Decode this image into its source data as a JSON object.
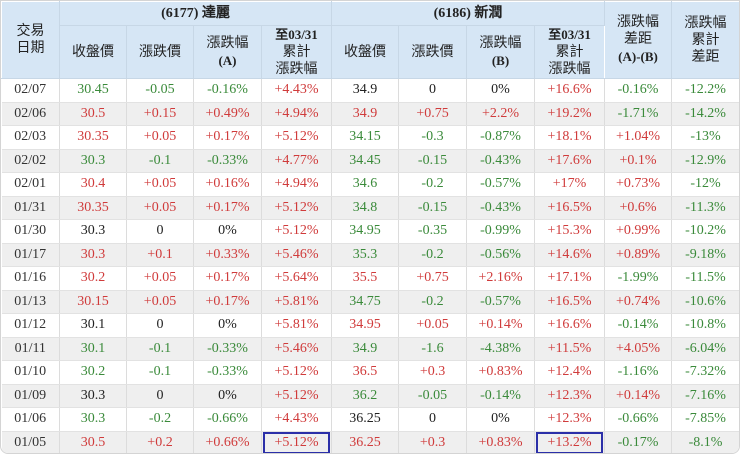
{
  "header": {
    "date_col": [
      "交易",
      "日期"
    ],
    "group_a": "(6177) 達麗",
    "group_b": "(6186) 新潤",
    "cols_a": {
      "close": "收盤價",
      "change": "漲跌價",
      "pct": [
        "漲跌幅",
        "(A)"
      ],
      "cum": [
        "至03/31",
        "累計",
        "漲跌幅"
      ]
    },
    "cols_b": {
      "close": "收盤價",
      "change": "漲跌價",
      "pct": [
        "漲跌幅",
        "(B)"
      ],
      "cum": [
        "至03/31",
        "累計",
        "漲跌幅"
      ]
    },
    "diff": [
      "漲跌幅",
      "差距",
      "(A)-(B)"
    ],
    "cum_diff": [
      "漲跌幅",
      "累計",
      "差距"
    ]
  },
  "colors": {
    "up": "#d03b3b",
    "down": "#3a8a3a",
    "header_bg": "#d6e6f5",
    "highlight_border": "#2b2fa8"
  },
  "rows": [
    {
      "date": "02/07",
      "a_close": "30.45",
      "a_chg": "-0.05",
      "a_pct": "-0.16%",
      "a_cum": "+4.43%",
      "b_close": "34.9",
      "b_chg": "0",
      "b_pct": "0%",
      "b_cum": "+16.6%",
      "diff": "-0.16%",
      "cum_diff": "-12.2%"
    },
    {
      "date": "02/06",
      "a_close": "30.5",
      "a_chg": "+0.15",
      "a_pct": "+0.49%",
      "a_cum": "+4.94%",
      "b_close": "34.9",
      "b_chg": "+0.75",
      "b_pct": "+2.2%",
      "b_cum": "+19.2%",
      "diff": "-1.71%",
      "cum_diff": "-14.2%"
    },
    {
      "date": "02/03",
      "a_close": "30.35",
      "a_chg": "+0.05",
      "a_pct": "+0.17%",
      "a_cum": "+5.12%",
      "b_close": "34.15",
      "b_chg": "-0.3",
      "b_pct": "-0.87%",
      "b_cum": "+18.1%",
      "diff": "+1.04%",
      "cum_diff": "-13%"
    },
    {
      "date": "02/02",
      "a_close": "30.3",
      "a_chg": "-0.1",
      "a_pct": "-0.33%",
      "a_cum": "+4.77%",
      "b_close": "34.45",
      "b_chg": "-0.15",
      "b_pct": "-0.43%",
      "b_cum": "+17.6%",
      "diff": "+0.1%",
      "cum_diff": "-12.9%"
    },
    {
      "date": "02/01",
      "a_close": "30.4",
      "a_chg": "+0.05",
      "a_pct": "+0.16%",
      "a_cum": "+4.94%",
      "b_close": "34.6",
      "b_chg": "-0.2",
      "b_pct": "-0.57%",
      "b_cum": "+17%",
      "diff": "+0.73%",
      "cum_diff": "-12%"
    },
    {
      "date": "01/31",
      "a_close": "30.35",
      "a_chg": "+0.05",
      "a_pct": "+0.17%",
      "a_cum": "+5.12%",
      "b_close": "34.8",
      "b_chg": "-0.15",
      "b_pct": "-0.43%",
      "b_cum": "+16.5%",
      "diff": "+0.6%",
      "cum_diff": "-11.3%"
    },
    {
      "date": "01/30",
      "a_close": "30.3",
      "a_chg": "0",
      "a_pct": "0%",
      "a_cum": "+5.12%",
      "b_close": "34.95",
      "b_chg": "-0.35",
      "b_pct": "-0.99%",
      "b_cum": "+15.3%",
      "diff": "+0.99%",
      "cum_diff": "-10.2%"
    },
    {
      "date": "01/17",
      "a_close": "30.3",
      "a_chg": "+0.1",
      "a_pct": "+0.33%",
      "a_cum": "+5.46%",
      "b_close": "35.3",
      "b_chg": "-0.2",
      "b_pct": "-0.56%",
      "b_cum": "+14.6%",
      "diff": "+0.89%",
      "cum_diff": "-9.18%"
    },
    {
      "date": "01/16",
      "a_close": "30.2",
      "a_chg": "+0.05",
      "a_pct": "+0.17%",
      "a_cum": "+5.64%",
      "b_close": "35.5",
      "b_chg": "+0.75",
      "b_pct": "+2.16%",
      "b_cum": "+17.1%",
      "diff": "-1.99%",
      "cum_diff": "-11.5%"
    },
    {
      "date": "01/13",
      "a_close": "30.15",
      "a_chg": "+0.05",
      "a_pct": "+0.17%",
      "a_cum": "+5.81%",
      "b_close": "34.75",
      "b_chg": "-0.2",
      "b_pct": "-0.57%",
      "b_cum": "+16.5%",
      "diff": "+0.74%",
      "cum_diff": "-10.6%"
    },
    {
      "date": "01/12",
      "a_close": "30.1",
      "a_chg": "0",
      "a_pct": "0%",
      "a_cum": "+5.81%",
      "b_close": "34.95",
      "b_chg": "+0.05",
      "b_pct": "+0.14%",
      "b_cum": "+16.6%",
      "diff": "-0.14%",
      "cum_diff": "-10.8%"
    },
    {
      "date": "01/11",
      "a_close": "30.1",
      "a_chg": "-0.1",
      "a_pct": "-0.33%",
      "a_cum": "+5.46%",
      "b_close": "34.9",
      "b_chg": "-1.6",
      "b_pct": "-4.38%",
      "b_cum": "+11.5%",
      "diff": "+4.05%",
      "cum_diff": "-6.04%"
    },
    {
      "date": "01/10",
      "a_close": "30.2",
      "a_chg": "-0.1",
      "a_pct": "-0.33%",
      "a_cum": "+5.12%",
      "b_close": "36.5",
      "b_chg": "+0.3",
      "b_pct": "+0.83%",
      "b_cum": "+12.4%",
      "diff": "-1.16%",
      "cum_diff": "-7.32%"
    },
    {
      "date": "01/09",
      "a_close": "30.3",
      "a_chg": "0",
      "a_pct": "0%",
      "a_cum": "+5.12%",
      "b_close": "36.2",
      "b_chg": "-0.05",
      "b_pct": "-0.14%",
      "b_cum": "+12.3%",
      "diff": "+0.14%",
      "cum_diff": "-7.16%"
    },
    {
      "date": "01/06",
      "a_close": "30.3",
      "a_chg": "-0.2",
      "a_pct": "-0.66%",
      "a_cum": "+4.43%",
      "b_close": "36.25",
      "b_chg": "0",
      "b_pct": "0%",
      "b_cum": "+12.3%",
      "diff": "-0.66%",
      "cum_diff": "-7.85%"
    },
    {
      "date": "01/05",
      "a_close": "30.5",
      "a_chg": "+0.2",
      "a_pct": "+0.66%",
      "a_cum": "+5.12%",
      "b_close": "36.25",
      "b_chg": "+0.3",
      "b_pct": "+0.83%",
      "b_cum": "+13.2%",
      "diff": "-0.17%",
      "cum_diff": "-8.1%"
    }
  ],
  "highlighted_cells": [
    {
      "row": 15,
      "col": "a_cum"
    },
    {
      "row": 15,
      "col": "b_cum"
    }
  ]
}
